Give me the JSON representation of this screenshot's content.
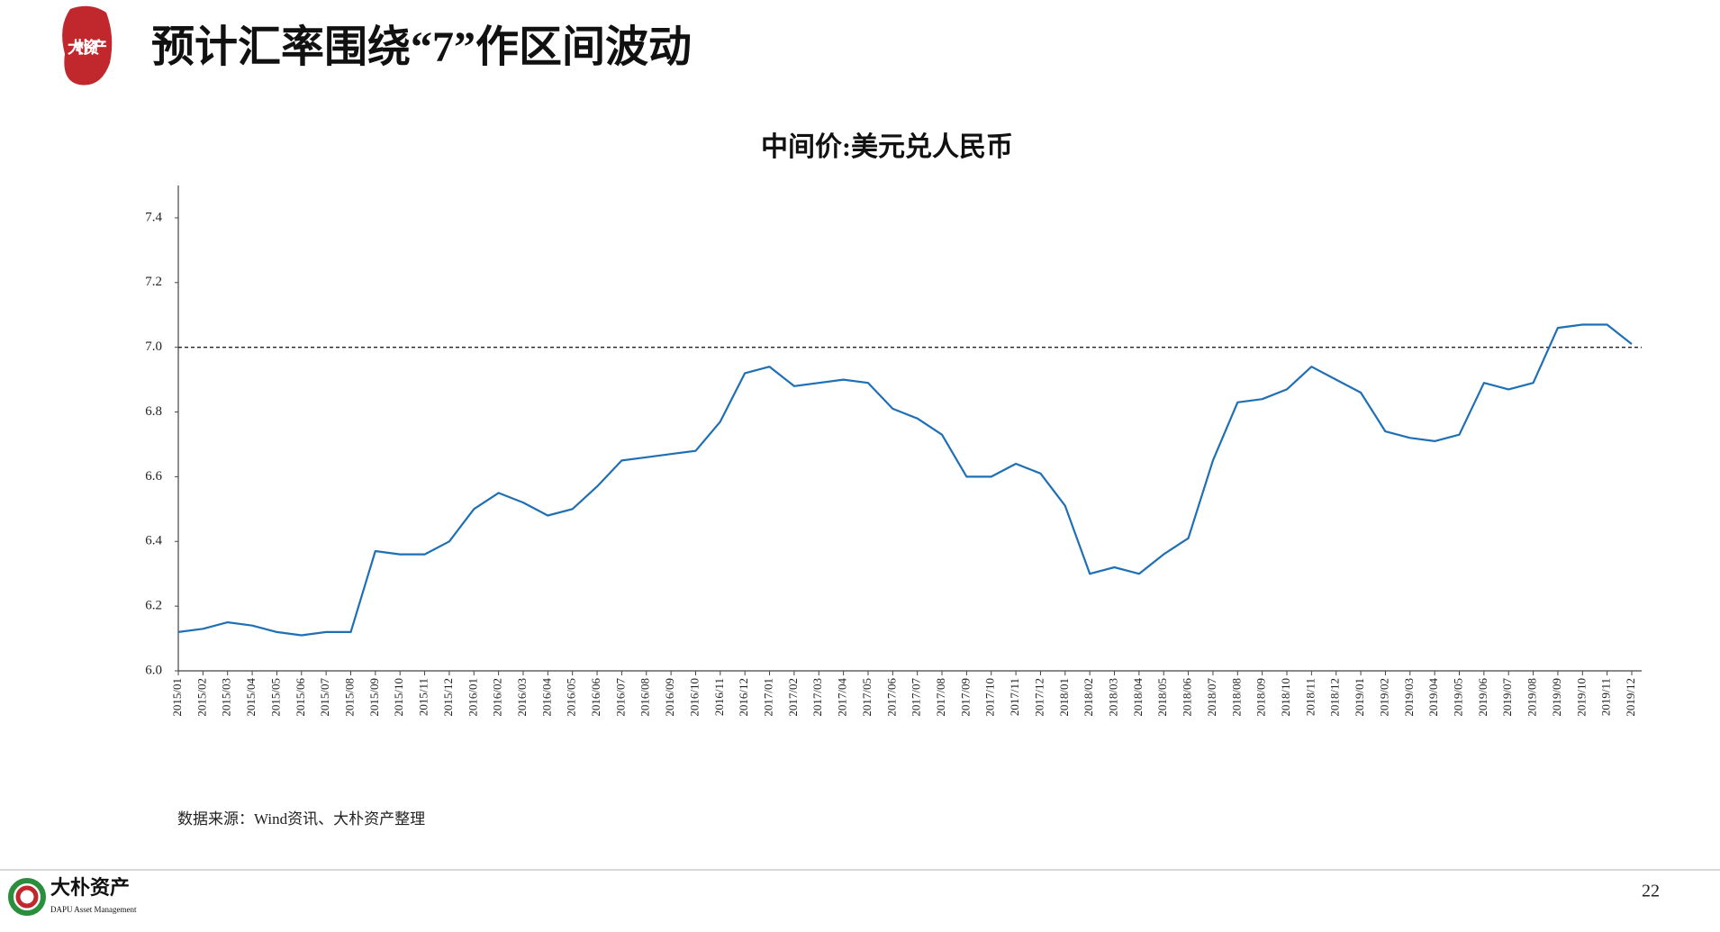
{
  "page": {
    "title": "预计汇率围绕“7”作区间波动",
    "seal": "大朴资产",
    "source": "数据来源：Wind资讯、大朴资产整理",
    "logo_name": "大朴资产",
    "logo_subtitle": "DAPU Asset Management",
    "page_number": 22
  },
  "chart_data": {
    "type": "line",
    "title": "中间价:美元兑人民币",
    "categories": [
      "2015/01",
      "2015/02",
      "2015/03",
      "2015/04",
      "2015/05",
      "2015/06",
      "2015/07",
      "2015/08",
      "2015/09",
      "2015/10",
      "2015/11",
      "2015/12",
      "2016/01",
      "2016/02",
      "2016/03",
      "2016/04",
      "2016/05",
      "2016/06",
      "2016/07",
      "2016/08",
      "2016/09",
      "2016/10",
      "2016/11",
      "2016/12",
      "2017/01",
      "2017/02",
      "2017/03",
      "2017/04",
      "2017/05",
      "2017/06",
      "2017/07",
      "2017/08",
      "2017/09",
      "2017/10",
      "2017/11",
      "2017/12",
      "2018/01",
      "2018/02",
      "2018/03",
      "2018/04",
      "2018/05",
      "2018/06",
      "2018/07",
      "2018/08",
      "2018/09",
      "2018/10",
      "2018/11",
      "2018/12",
      "2019/01",
      "2019/02",
      "2019/03",
      "2019/04",
      "2019/05",
      "2019/06",
      "2019/07",
      "2019/08",
      "2019/09",
      "2019/10",
      "2019/11",
      "2019/12"
    ],
    "values": [
      6.12,
      6.13,
      6.15,
      6.14,
      6.12,
      6.11,
      6.12,
      6.12,
      6.37,
      6.36,
      6.36,
      6.4,
      6.5,
      6.55,
      6.52,
      6.48,
      6.5,
      6.57,
      6.65,
      6.66,
      6.67,
      6.68,
      6.77,
      6.92,
      6.94,
      6.88,
      6.89,
      6.9,
      6.89,
      6.81,
      6.78,
      6.73,
      6.6,
      6.6,
      6.64,
      6.61,
      6.51,
      6.3,
      6.32,
      6.3,
      6.36,
      6.41,
      6.65,
      6.83,
      6.84,
      6.87,
      6.94,
      6.9,
      6.86,
      6.74,
      6.72,
      6.71,
      6.73,
      6.89,
      6.87,
      6.89,
      7.06,
      7.07,
      7.07,
      7.01
    ],
    "color": "#1f6fb5",
    "ylim": [
      6.0,
      7.5
    ],
    "yticks": [
      {
        "value": 6,
        "label": "6.0"
      },
      6.2,
      6.4,
      6.6,
      6.8,
      {
        "value": 7,
        "label": "7.0"
      },
      7.2,
      7.4
    ],
    "reference_line": 7,
    "grid": false
  }
}
